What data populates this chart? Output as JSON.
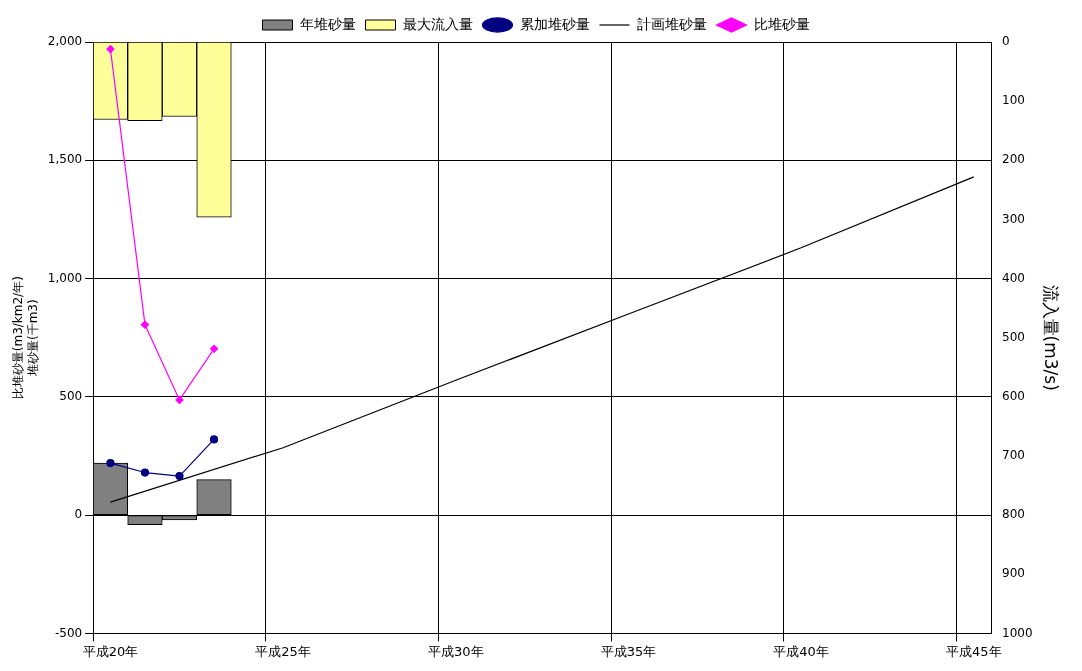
{
  "chart_data": {
    "type": "bar",
    "ylabel": "比堆砂量(m3/km2/年)\n堆砂量(千m3)",
    "y2label": "流入量(m3/s)",
    "categories": [
      "平成20年",
      null,
      null,
      null,
      null,
      "平成25年",
      null,
      null,
      null,
      null,
      "平成30年",
      null,
      null,
      null,
      null,
      "平成35年",
      null,
      null,
      null,
      null,
      "平成40年",
      null,
      null,
      null,
      null,
      "平成45年"
    ],
    "ylim": [
      -500,
      2000
    ],
    "yticks": [
      -500,
      0,
      500,
      {
        "value": 1000,
        "label": "1,000"
      },
      {
        "value": 1500,
        "label": "1,500"
      },
      {
        "value": 2000,
        "label": "2,000"
      }
    ],
    "y2lim": [
      1000,
      0
    ],
    "y2ticks": [
      0,
      100,
      200,
      300,
      400,
      500,
      600,
      700,
      800,
      900,
      1000
    ],
    "grid": true,
    "legend": "top",
    "series": [
      {
        "name": "年堆砂量",
        "color": "#808080",
        "values": [
          220,
          -40,
          -20,
          150,
          null,
          null,
          null,
          null,
          null,
          null,
          null,
          null,
          null,
          null,
          null,
          null,
          null,
          null,
          null,
          null,
          null,
          null,
          null,
          null,
          null,
          null
        ]
      },
      {
        "name": "最大流入量",
        "axis": "y2",
        "color": "#ffff99",
        "values": [
          131,
          133,
          126,
          296,
          null,
          null,
          null,
          null,
          null,
          null,
          null,
          null,
          null,
          null,
          null,
          null,
          null,
          null,
          null,
          null,
          null,
          null,
          null,
          null,
          null,
          null
        ]
      },
      {
        "name": "累加堆砂量",
        "type": "line",
        "color": "#000080",
        "marker": "circle",
        "values": [
          220,
          180,
          165,
          320,
          null,
          null,
          null,
          null,
          null,
          null,
          null,
          null,
          null,
          null,
          null,
          null,
          null,
          null,
          null,
          null,
          null,
          null,
          null,
          null,
          null,
          null
        ]
      },
      {
        "name": "計画堆砂量",
        "type": "line",
        "color": "#000000",
        "marker": "none",
        "values": [
          55,
          null,
          null,
          null,
          null,
          285,
          null,
          null,
          null,
          null,
          570,
          null,
          null,
          null,
          null,
          850,
          null,
          null,
          null,
          null,
          1130,
          null,
          null,
          null,
          null,
          1430
        ]
      },
      {
        "name": "比堆砂量",
        "type": "line",
        "color": "#ff00ff",
        "marker": "diamond",
        "values": [
          1970,
          805,
          487,
          703,
          null,
          null,
          null,
          null,
          null,
          null,
          null,
          null,
          null,
          null,
          null,
          null,
          null,
          null,
          null,
          null,
          null,
          null,
          null,
          null,
          null,
          null
        ]
      }
    ]
  }
}
